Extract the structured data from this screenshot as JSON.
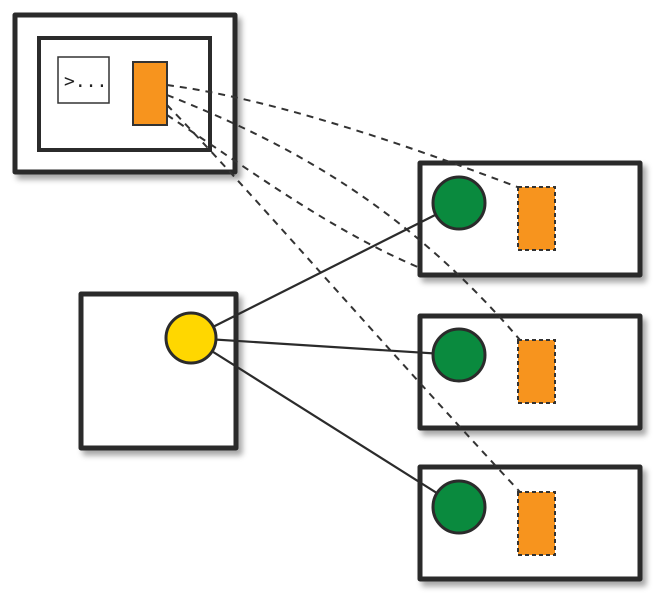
{
  "terminal": {
    "prompt_text": ">..."
  },
  "colors": {
    "orange": "#f7941e",
    "green": "#0a8a3e",
    "yellow": "#ffd700",
    "stroke": "#2b2b2b"
  },
  "icons": {
    "terminal": "terminal-prompt-icon",
    "primary": "yellow-circle-node-icon",
    "replica": "green-circle-node-icon",
    "process": "orange-rectangle-icon"
  }
}
